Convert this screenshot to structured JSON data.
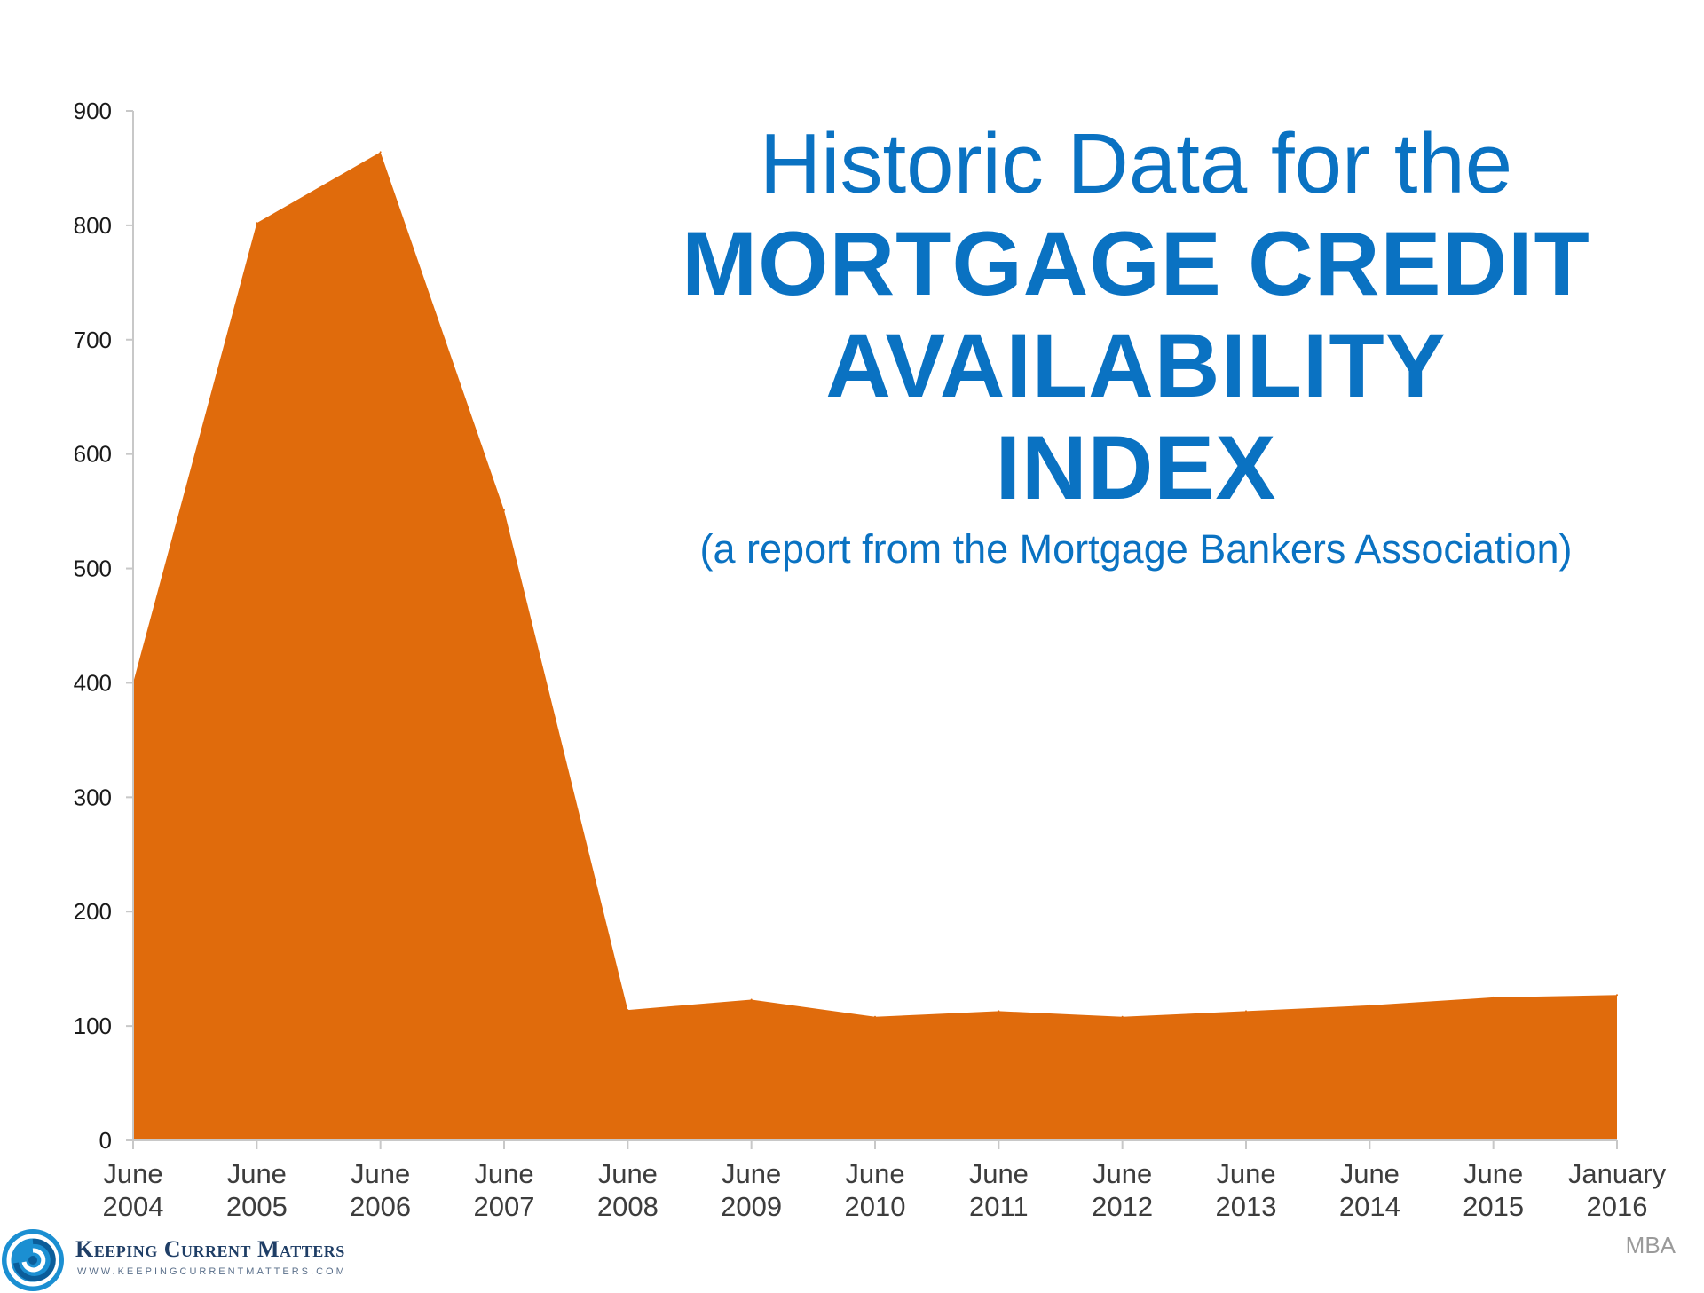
{
  "title": {
    "line1": "Historic Data for the",
    "line2": "MORTGAGE CREDIT",
    "line3": "AVAILABILITY INDEX",
    "subtitle": "(a report from the Mortgage Bankers Association)"
  },
  "source_label": "MBA",
  "logo": {
    "name": "Keeping Current Matters",
    "url": "WWW.KEEPINGCURRENTMATTERS.COM",
    "icon": "swirl-logo-icon"
  },
  "colors": {
    "area_fill": "#e06b0c",
    "title": "#0a72c2",
    "axis": "#c8c8c8",
    "tick_text": "#1a1a1a",
    "xtick_text": "#3d3d3d"
  },
  "chart_data": {
    "type": "area",
    "title": "Historic Data for the MORTGAGE CREDIT AVAILABILITY INDEX",
    "subtitle": "(a report from the Mortgage Bankers Association)",
    "xlabel": "",
    "ylabel": "",
    "categories": [
      [
        "June",
        "2004"
      ],
      [
        "June",
        "2005"
      ],
      [
        "June",
        "2006"
      ],
      [
        "June",
        "2007"
      ],
      [
        "June",
        "2008"
      ],
      [
        "June",
        "2009"
      ],
      [
        "June",
        "2010"
      ],
      [
        "June",
        "2011"
      ],
      [
        "June",
        "2012"
      ],
      [
        "June",
        "2013"
      ],
      [
        "June",
        "2014"
      ],
      [
        "June",
        "2015"
      ],
      [
        "January",
        "2016"
      ]
    ],
    "series": [
      {
        "values": [
          400,
          802,
          864,
          551,
          114,
          123,
          108,
          113,
          108,
          113,
          118,
          125,
          127
        ]
      }
    ],
    "ylim": [
      0,
      900
    ],
    "yticks": [
      0,
      100,
      200,
      300,
      400,
      500,
      600,
      700,
      800,
      900
    ],
    "grid": false,
    "legend": "none"
  }
}
